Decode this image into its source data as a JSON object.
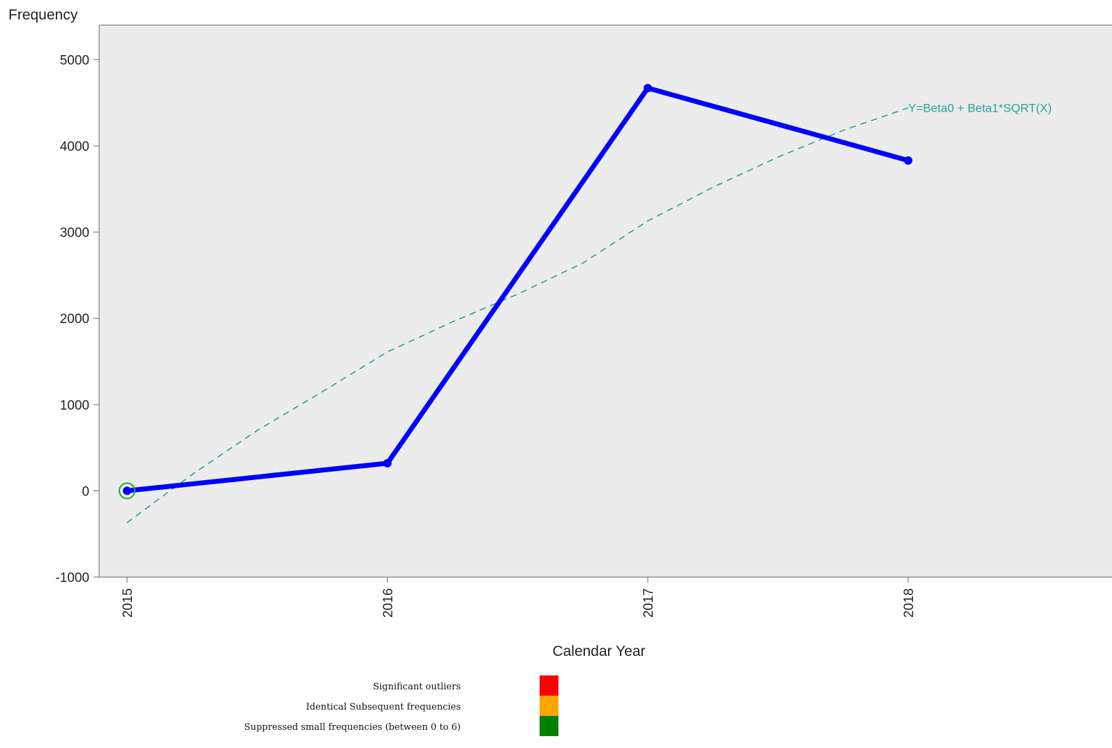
{
  "chart_data": {
    "type": "line",
    "ylabel": "Frequency",
    "xlabel": "Calendar Year",
    "categories": [
      "2015",
      "2016",
      "2017",
      "2018"
    ],
    "ylim": [
      -1000,
      5400
    ],
    "yticks": [
      -1000,
      0,
      1000,
      2000,
      3000,
      4000,
      5000
    ],
    "grid": false,
    "series": [
      {
        "values": [
          0,
          320,
          4670,
          3830
        ],
        "color": "#0000ff",
        "style": "solid-thick"
      }
    ],
    "fit_line": {
      "label": "Y=Beta0 + Beta1*SQRT(X)",
      "x": [
        2015,
        2015.25,
        2015.5,
        2015.75,
        2016,
        2016.25,
        2016.5,
        2016.75,
        2017,
        2017.25,
        2017.5,
        2017.75,
        2018
      ],
      "values": [
        -370,
        190,
        700,
        1150,
        1610,
        1960,
        2280,
        2640,
        3130,
        3520,
        3870,
        4180,
        4440
      ],
      "color": "#2aa198",
      "style": "dashed"
    },
    "highlighted_points": [
      {
        "category": "2015",
        "value": 0,
        "marker": "green-circle"
      }
    ],
    "legend": {
      "placement": "bottom-center",
      "items": [
        {
          "label": "Significant outliers",
          "color": "#ff0000"
        },
        {
          "label": "Identical Subsequent frequencies",
          "color": "#ffa500"
        },
        {
          "label": "Suppressed small frequencies (between 0 to 6)",
          "color": "#008000"
        }
      ]
    },
    "colors": {
      "plot_background": "#ececec",
      "axis": "#808080",
      "highlight": "#22aa22"
    }
  }
}
